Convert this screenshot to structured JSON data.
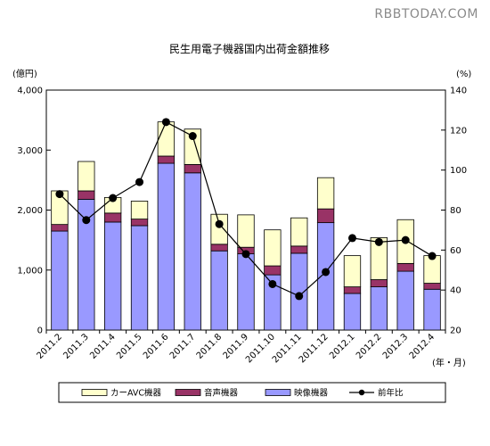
{
  "watermark": "RBBTODAY.COM",
  "chart_data": {
    "type": "bar",
    "stacked": true,
    "title": "民生用電子機器国内出荷金額推移",
    "y_left_unit": "(億円)",
    "y_right_unit": "(%)",
    "x_unit": "(年・月)",
    "categories": [
      "2011.2",
      "2011.3",
      "2011.4",
      "2011.5",
      "2011.6",
      "2011.7",
      "2011.8",
      "2011.9",
      "2011.10",
      "2011.11",
      "2011.12",
      "2012.1",
      "2012.2",
      "2012.3",
      "2012.4"
    ],
    "ylim_left": [
      0,
      4000
    ],
    "yticks_left": [
      "0",
      "1,000",
      "2,000",
      "3,000",
      "4,000"
    ],
    "ylim_right": [
      20,
      140
    ],
    "yticks_right": [
      "20",
      "40",
      "60",
      "80",
      "100",
      "120",
      "140"
    ],
    "series": [
      {
        "name": "映像機器",
        "color": "#9999ff",
        "values": [
          1650,
          2180,
          1800,
          1740,
          2780,
          2620,
          1320,
          1270,
          920,
          1280,
          1790,
          610,
          720,
          980,
          680
        ]
      },
      {
        "name": "音声機器",
        "color": "#993366",
        "values": [
          110,
          140,
          150,
          110,
          120,
          140,
          110,
          110,
          150,
          120,
          230,
          110,
          120,
          130,
          100
        ]
      },
      {
        "name": "カーAVC機器",
        "color": "#ffffcc",
        "values": [
          560,
          490,
          260,
          300,
          570,
          590,
          500,
          540,
          600,
          470,
          520,
          520,
          700,
          730,
          460
        ]
      }
    ],
    "line_series": {
      "name": "前年比",
      "color": "#000000",
      "values": [
        88,
        75,
        86,
        94,
        124,
        117,
        73,
        58,
        43,
        37,
        49,
        66,
        64,
        65,
        57
      ]
    },
    "legend": [
      "カーAVC機器",
      "音声機器",
      "映像機器",
      "前年比"
    ],
    "legend_position": "bottom",
    "grid": false
  }
}
